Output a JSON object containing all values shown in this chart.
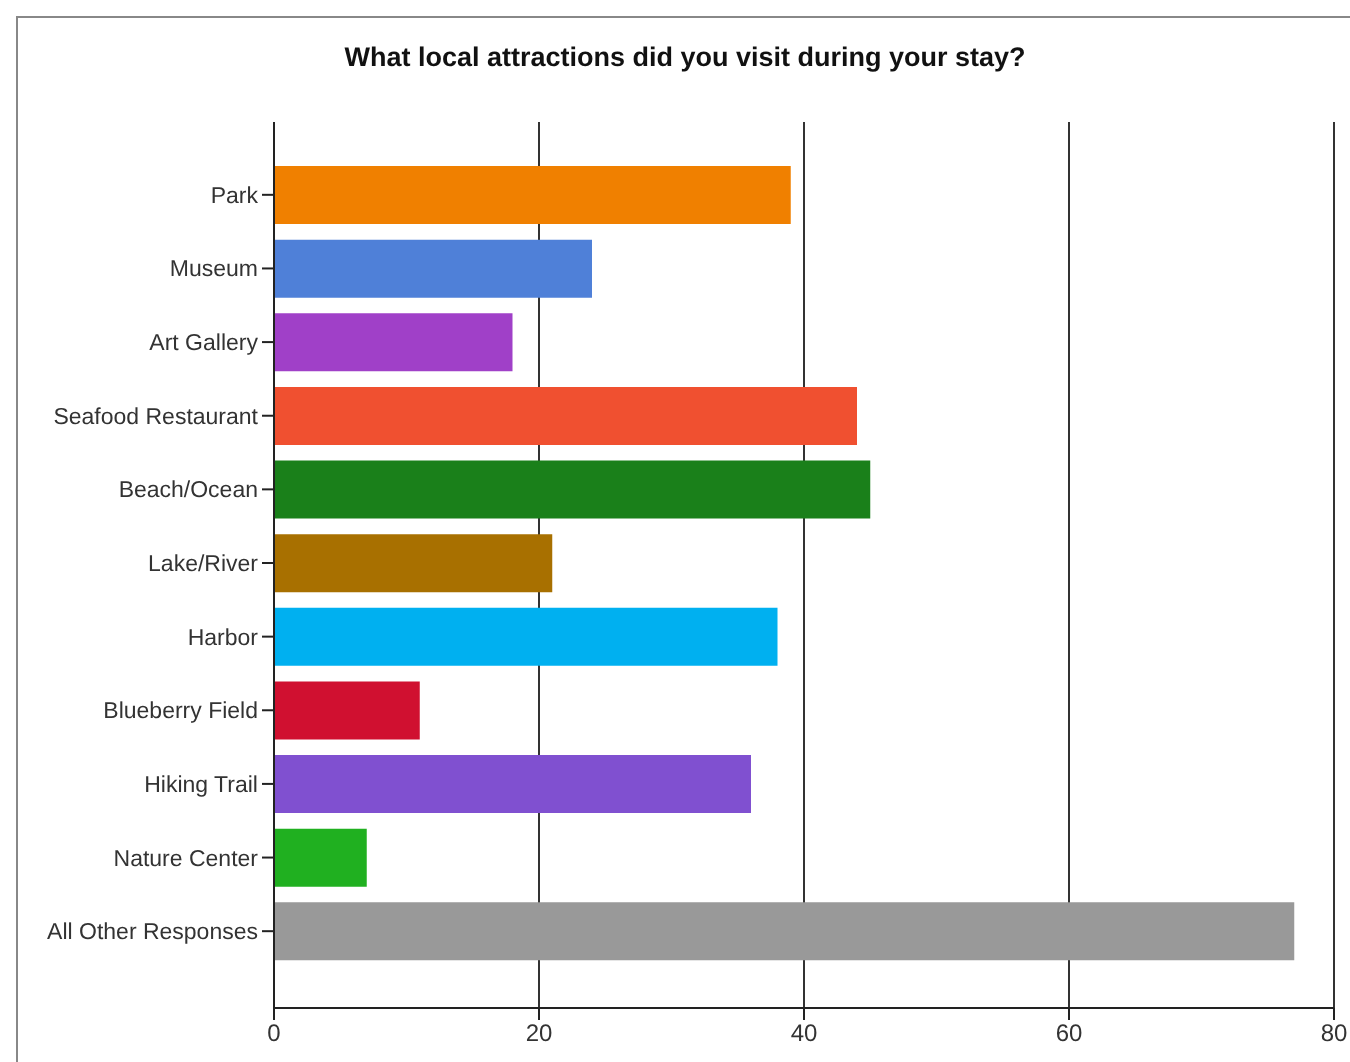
{
  "chart_data": {
    "type": "bar",
    "orientation": "horizontal",
    "title": "What local attractions did you visit during your stay?",
    "categories": [
      "Park",
      "Museum",
      "Art Gallery",
      "Seafood Restaurant",
      "Beach/Ocean",
      "Lake/River",
      "Harbor",
      "Blueberry Field",
      "Hiking Trail",
      "Nature Center",
      "All Other Responses"
    ],
    "values": [
      39,
      24,
      18,
      44,
      45,
      21,
      38,
      11,
      36,
      7,
      77
    ],
    "colors": [
      "#f08000",
      "#4f80d8",
      "#a040c8",
      "#f05030",
      "#1a801a",
      "#a87000",
      "#00b0f0",
      "#d01030",
      "#8050d0",
      "#20b020",
      "#999999"
    ],
    "xlim": [
      0,
      80
    ],
    "xticks": [
      0,
      20,
      40,
      60,
      80
    ],
    "grid": "x"
  }
}
